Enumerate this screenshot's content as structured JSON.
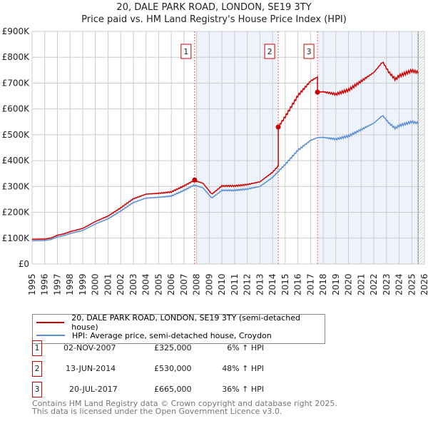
{
  "title": "20, DALE PARK ROAD, LONDON, SE19 3TY",
  "subtitle": "Price paid vs. HM Land Registry's House Price Index (HPI)",
  "colors": {
    "property": "#cc0000",
    "hpi": "#5b8fd4",
    "shade": "#eef3fb",
    "grid": "#cccccc"
  },
  "chart_data": {
    "type": "line",
    "title": "Price paid vs. HM Land Registry's House Price Index (HPI)",
    "xlim": [
      1995,
      2026
    ],
    "ylim": [
      0,
      900000
    ],
    "grid": true,
    "x_ticks": [
      "1995",
      "1996",
      "1997",
      "1998",
      "1999",
      "2000",
      "2001",
      "2002",
      "2003",
      "2004",
      "2005",
      "2006",
      "2007",
      "2008",
      "2009",
      "2010",
      "2011",
      "2012",
      "2013",
      "2014",
      "2015",
      "2016",
      "2017",
      "2018",
      "2019",
      "2020",
      "2021",
      "2022",
      "2023",
      "2024",
      "2025",
      "2026"
    ],
    "y_ticks": [
      {
        "value": 0,
        "label": "£0"
      },
      {
        "value": 100000,
        "label": "£100K"
      },
      {
        "value": 200000,
        "label": "£200K"
      },
      {
        "value": 300000,
        "label": "£300K"
      },
      {
        "value": 400000,
        "label": "£400K"
      },
      {
        "value": 500000,
        "label": "£500K"
      },
      {
        "value": 600000,
        "label": "£600K"
      },
      {
        "value": 700000,
        "label": "£700K"
      },
      {
        "value": 800000,
        "label": "£800K"
      },
      {
        "value": 900000,
        "label": "£900K"
      }
    ],
    "data_end": 2025.5,
    "hpi_series": {
      "name": "HPI: Average price, semi-detached house, Croydon",
      "x": [
        1995,
        1996,
        1996.5,
        1997,
        1997.5,
        1998,
        1999,
        2000,
        2001,
        2002,
        2003,
        2004,
        2005,
        2006,
        2007,
        2007.8,
        2008.5,
        2009.2,
        2010,
        2011,
        2012,
        2013,
        2014,
        2014.45,
        2015,
        2016,
        2017,
        2017.55,
        2018,
        2019,
        2020,
        2021,
        2022,
        2022.7,
        2023.2,
        2023.7,
        2024,
        2025,
        2025.5
      ],
      "y": [
        90000,
        91000,
        95000,
        105000,
        110000,
        118000,
        130000,
        155000,
        175000,
        205000,
        238000,
        255000,
        258000,
        263000,
        285000,
        305000,
        295000,
        255000,
        285000,
        285000,
        290000,
        300000,
        335000,
        358000,
        385000,
        440000,
        478000,
        489000,
        490000,
        483000,
        495000,
        520000,
        545000,
        575000,
        545000,
        525000,
        535000,
        550000,
        545000
      ]
    },
    "property_series": {
      "name": "20, DALE PARK ROAD, LONDON, SE19 3TY (semi-detached house)"
    },
    "sales": [
      {
        "id": "1",
        "x": 2007.84,
        "date": "02-NOV-2007",
        "price": 325000,
        "price_label": "£325,000",
        "hpi_change": "6% ↑ HPI",
        "ratio": 1.06
      },
      {
        "id": "2",
        "x": 2014.45,
        "date": "13-JUN-2014",
        "price": 530000,
        "price_label": "£530,000",
        "hpi_change": "48% ↑ HPI",
        "ratio": 1.48
      },
      {
        "id": "3",
        "x": 2017.55,
        "date": "20-JUL-2017",
        "price": 665000,
        "price_label": "£665,000",
        "hpi_change": "36% ↑ HPI",
        "ratio": 1.36
      }
    ]
  },
  "legend": {
    "property": "20, DALE PARK ROAD, LONDON, SE19 3TY (semi-detached house)",
    "hpi": "HPI: Average price, semi-detached house, Croydon"
  },
  "footer": {
    "line1": "Contains HM Land Registry data © Crown copyright and database right 2025.",
    "line2": "This data is licensed under the Open Government Licence v3.0."
  }
}
